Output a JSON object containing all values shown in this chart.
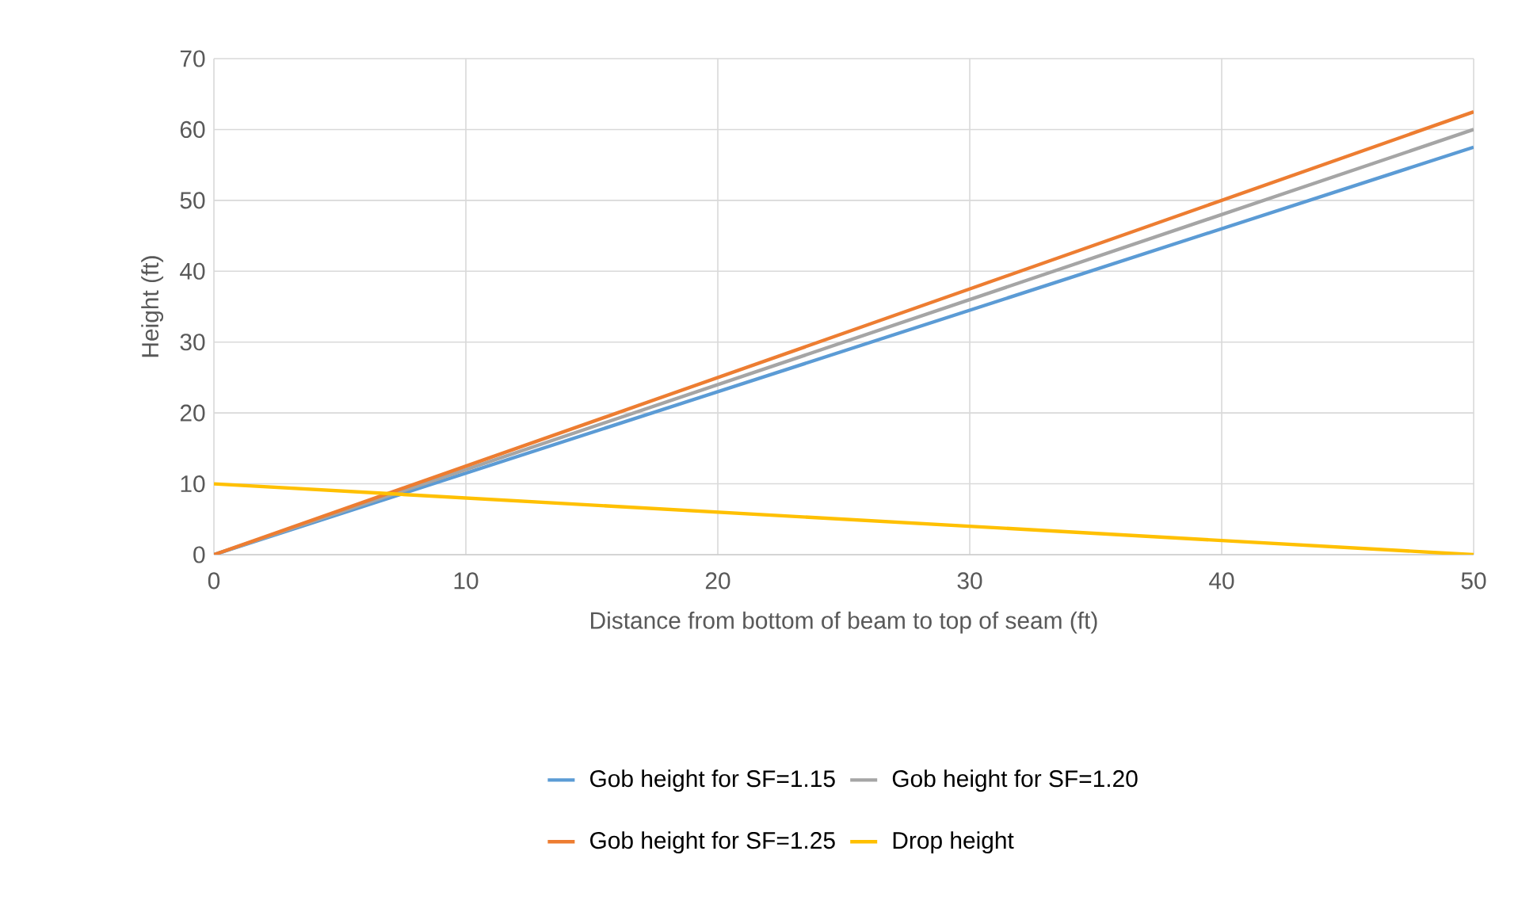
{
  "chart_data": {
    "type": "line",
    "xlabel": "Distance from bottom of beam to top of seam (ft)",
    "ylabel": "Height (ft)",
    "x": [
      0,
      50
    ],
    "series": [
      {
        "name": "Gob height for SF=1.15",
        "color": "#5b9bd5",
        "values": [
          0,
          57.5
        ]
      },
      {
        "name": "Gob height for SF=1.20",
        "color": "#a5a5a5",
        "values": [
          0,
          60
        ]
      },
      {
        "name": "Gob height for SF=1.25",
        "color": "#ed7d31",
        "values": [
          0,
          62.5
        ]
      },
      {
        "name": "Drop height",
        "color": "#ffc000",
        "values": [
          10,
          0
        ]
      }
    ],
    "xlim": [
      0,
      50
    ],
    "ylim": [
      0,
      70
    ],
    "xticks": [
      0,
      10,
      20,
      30,
      40,
      50
    ],
    "yticks": [
      0,
      10,
      20,
      30,
      40,
      50,
      60,
      70
    ],
    "grid": true,
    "legend": "bottom",
    "marker": "none",
    "line_style": "solid"
  }
}
